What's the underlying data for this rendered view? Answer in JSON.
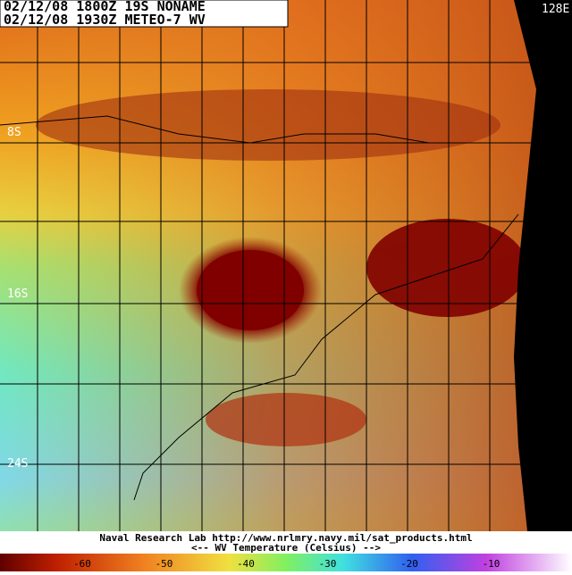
{
  "header": {
    "line1": "02/12/08 1800Z  19S NONAME",
    "line2": "02/12/08 1930Z  METEO-7 WV"
  },
  "map": {
    "lat_labels": [
      "8S",
      "16S",
      "24S"
    ],
    "lon_label": "128E"
  },
  "footer": {
    "credit": "Naval Research Lab http://www.nrlmry.navy.mil/sat_products.html",
    "legend_title": "<--  WV Temperature (Celsius)  -->"
  },
  "colorbar": {
    "ticks": [
      -60,
      -50,
      -40,
      -30,
      -20,
      -10
    ]
  }
}
